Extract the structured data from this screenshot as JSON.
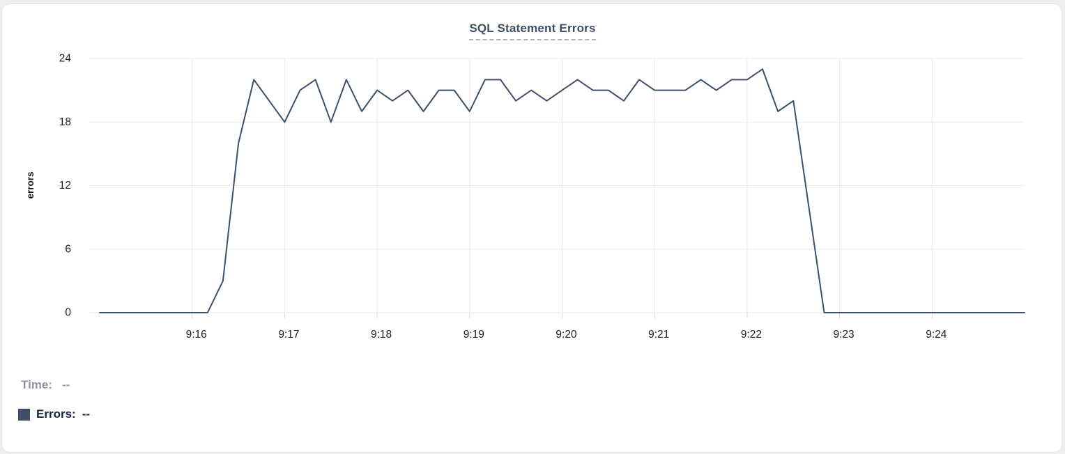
{
  "chart": {
    "title": "SQL Statement Errors"
  },
  "tooltip": {
    "time_label": "Time:",
    "time_value": "--",
    "errors_label": "Errors:",
    "errors_value": "--"
  },
  "colors": {
    "line": "#3e4f66",
    "swatch": "#3e4f66",
    "title": "#3d4e68",
    "grid": "#e9eaec",
    "tick": "#d9dadd",
    "axis_text": "#1c1c1e",
    "axis_label_text": "#111111",
    "time_text": "#8f949d",
    "errors_text": "#16233f",
    "card_border": "#e5e6e9",
    "page_bg": "#edeef0"
  },
  "chart_data": {
    "type": "line",
    "title": "SQL Statement Errors",
    "xlabel": "",
    "ylabel": "errors",
    "ylim": [
      0,
      24
    ],
    "y_ticks": [
      0,
      6,
      12,
      18,
      24
    ],
    "x_tick_labels": [
      "9:16",
      "9:17",
      "9:18",
      "9:19",
      "9:20",
      "9:21",
      "9:22",
      "9:23",
      "9:24"
    ],
    "x_range": [
      "9:15:00",
      "9:25:00"
    ],
    "sample_interval_seconds": 10,
    "grid": true,
    "legend_position": "bottom-left",
    "series": [
      {
        "name": "Errors",
        "x": [
          "9:15:00",
          "9:15:10",
          "9:15:20",
          "9:15:30",
          "9:15:40",
          "9:15:50",
          "9:16:00",
          "9:16:10",
          "9:16:20",
          "9:16:30",
          "9:16:40",
          "9:16:50",
          "9:17:00",
          "9:17:10",
          "9:17:20",
          "9:17:30",
          "9:17:40",
          "9:17:50",
          "9:18:00",
          "9:18:10",
          "9:18:20",
          "9:18:30",
          "9:18:40",
          "9:18:50",
          "9:19:00",
          "9:19:10",
          "9:19:20",
          "9:19:30",
          "9:19:40",
          "9:19:50",
          "9:20:00",
          "9:20:10",
          "9:20:20",
          "9:20:30",
          "9:20:40",
          "9:20:50",
          "9:21:00",
          "9:21:10",
          "9:21:20",
          "9:21:30",
          "9:21:40",
          "9:21:50",
          "9:22:00",
          "9:22:10",
          "9:22:20",
          "9:22:30",
          "9:22:40",
          "9:22:50",
          "9:23:00",
          "9:23:10",
          "9:23:20",
          "9:23:30",
          "9:23:40",
          "9:23:50",
          "9:24:00",
          "9:24:10",
          "9:24:20",
          "9:24:30",
          "9:24:40",
          "9:24:50",
          "9:25:00"
        ],
        "values": [
          0,
          0,
          0,
          0,
          0,
          0,
          0,
          0,
          3,
          16,
          22,
          20,
          18,
          21,
          22,
          18,
          22,
          19,
          21,
          20,
          21,
          19,
          21,
          21,
          19,
          22,
          22,
          20,
          21,
          20,
          21,
          22,
          21,
          21,
          20,
          22,
          21,
          21,
          21,
          22,
          21,
          22,
          22,
          23,
          19,
          20,
          10,
          0,
          0,
          0,
          0,
          0,
          0,
          0,
          0,
          0,
          0,
          0,
          0,
          0,
          0
        ]
      }
    ]
  }
}
